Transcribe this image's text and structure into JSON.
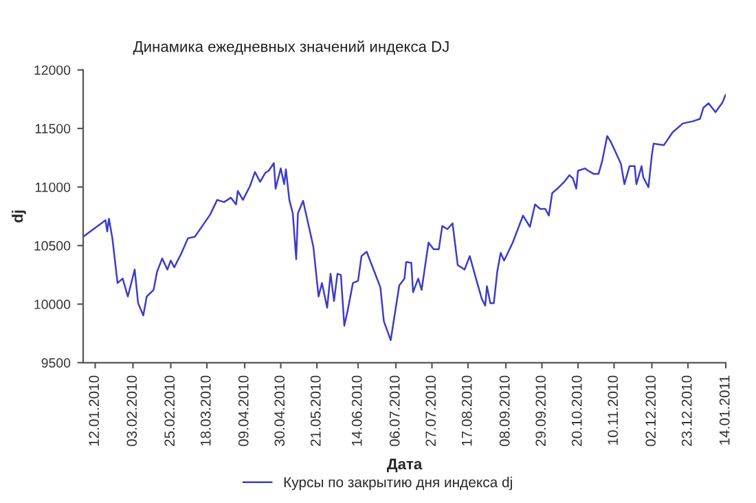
{
  "chart_data": {
    "type": "line",
    "title": "Динамика ежедневных значений индекса DJ",
    "xlabel": "Дата",
    "ylabel": "dj",
    "x": [
      "2010-01-05",
      "2010-01-11",
      "2010-01-18",
      "2010-01-19",
      "2010-01-20",
      "2010-01-22",
      "2010-01-25",
      "2010-01-28",
      "2010-01-31",
      "2010-02-04",
      "2010-02-06",
      "2010-02-09",
      "2010-02-11",
      "2010-02-15",
      "2010-02-17",
      "2010-02-20",
      "2010-02-23",
      "2010-02-25",
      "2010-02-27",
      "2010-03-03",
      "2010-03-07",
      "2010-03-11",
      "2010-03-15",
      "2010-03-20",
      "2010-03-24",
      "2010-03-28",
      "2010-04-01",
      "2010-04-04",
      "2010-04-05",
      "2010-04-08",
      "2010-04-12",
      "2010-04-15",
      "2010-04-18",
      "2010-04-21",
      "2010-04-23",
      "2010-04-26",
      "2010-04-27",
      "2010-04-30",
      "2010-05-02",
      "2010-05-03",
      "2010-05-05",
      "2010-05-07",
      "2010-05-09",
      "2010-05-10",
      "2010-05-13",
      "2010-05-17",
      "2010-05-19",
      "2010-05-22",
      "2010-05-24",
      "2010-05-27",
      "2010-05-29",
      "2010-05-31",
      "2010-06-02",
      "2010-06-04",
      "2010-06-06",
      "2010-06-08",
      "2010-06-11",
      "2010-06-14",
      "2010-06-16",
      "2010-06-19",
      "2010-06-23",
      "2010-06-27",
      "2010-06-29",
      "2010-07-03",
      "2010-07-08",
      "2010-07-11",
      "2010-07-12",
      "2010-07-15",
      "2010-07-16",
      "2010-07-19",
      "2010-07-21",
      "2010-07-25",
      "2010-07-28",
      "2010-07-31",
      "2010-08-02",
      "2010-08-05",
      "2010-08-08",
      "2010-08-11",
      "2010-08-15",
      "2010-08-18",
      "2010-08-22",
      "2010-08-25",
      "2010-08-27",
      "2010-08-28",
      "2010-08-30",
      "2010-09-01",
      "2010-09-03",
      "2010-09-05",
      "2010-09-07",
      "2010-09-12",
      "2010-09-14",
      "2010-09-18",
      "2010-09-22",
      "2010-09-25",
      "2010-09-28",
      "2010-10-01",
      "2010-10-03",
      "2010-10-05",
      "2010-10-08",
      "2010-10-12",
      "2010-10-15",
      "2010-10-17",
      "2010-10-19",
      "2010-10-20",
      "2010-10-24",
      "2010-10-26",
      "2010-10-29",
      "2010-11-01",
      "2010-11-03",
      "2010-11-06",
      "2010-11-08",
      "2010-11-11",
      "2010-11-14",
      "2010-11-16",
      "2010-11-19",
      "2010-11-22",
      "2010-11-23",
      "2010-11-26",
      "2010-11-27",
      "2010-11-30",
      "2010-12-02",
      "2010-12-03",
      "2010-12-09",
      "2010-12-14",
      "2010-12-20",
      "2010-12-26",
      "2010-12-30",
      "2011-01-01",
      "2011-01-04",
      "2011-01-08",
      "2011-01-09",
      "2011-01-12",
      "2011-01-14"
    ],
    "series": [
      {
        "name": "Курсы по закрытию дня индекса dj",
        "color": "#3c3cc8",
        "values": [
          10575,
          10640,
          10717,
          10621,
          10729,
          10563,
          10180,
          10218,
          10065,
          10295,
          10007,
          9903,
          10065,
          10122,
          10276,
          10390,
          10295,
          10372,
          10314,
          10429,
          10563,
          10575,
          10660,
          10767,
          10890,
          10871,
          10909,
          10851,
          10967,
          10890,
          11005,
          11128,
          11044,
          11121,
          11139,
          11205,
          10986,
          11159,
          11024,
          11151,
          10890,
          10775,
          10384,
          10775,
          10882,
          10621,
          10487,
          10065,
          10180,
          9969,
          10259,
          10026,
          10259,
          10249,
          9815,
          9949,
          10180,
          10199,
          10410,
          10448,
          10295,
          10142,
          9854,
          9692,
          10160,
          10218,
          10360,
          10352,
          10102,
          10218,
          10122,
          10525,
          10468,
          10468,
          10667,
          10640,
          10690,
          10333,
          10295,
          10410,
          10199,
          10045,
          9987,
          10153,
          10007,
          10007,
          10276,
          10437,
          10372,
          10525,
          10602,
          10756,
          10660,
          10851,
          10813,
          10813,
          10756,
          10948,
          10986,
          11044,
          11101,
          11075,
          10986,
          11139,
          11159,
          11139,
          11113,
          11113,
          11217,
          11435,
          11389,
          11294,
          11197,
          11024,
          11178,
          11178,
          11024,
          11178,
          11082,
          10998,
          11274,
          11370,
          11358,
          11466,
          11543,
          11562,
          11582,
          11677,
          11715,
          11639,
          11660,
          11720,
          11790
        ]
      }
    ],
    "xlim": [
      "2010-01-05",
      "2011-01-14"
    ],
    "xticks": [
      {
        "value": "2010-01-12",
        "label": "12.01.2010"
      },
      {
        "value": "2010-02-03",
        "label": "03.02.2010"
      },
      {
        "value": "2010-02-25",
        "label": "25.02.2010"
      },
      {
        "value": "2010-03-18",
        "label": "18.03.2010"
      },
      {
        "value": "2010-04-09",
        "label": "09.04.2010"
      },
      {
        "value": "2010-04-30",
        "label": "30.04.2010"
      },
      {
        "value": "2010-05-21",
        "label": "21.05.2010"
      },
      {
        "value": "2010-06-14",
        "label": "14.06.2010"
      },
      {
        "value": "2010-07-06",
        "label": "06.07.2010"
      },
      {
        "value": "2010-07-27",
        "label": "27.07.2010"
      },
      {
        "value": "2010-08-17",
        "label": "17.08.2010"
      },
      {
        "value": "2010-09-08",
        "label": "08.09.2010"
      },
      {
        "value": "2010-09-29",
        "label": "29.09.2010"
      },
      {
        "value": "2010-10-20",
        "label": "20.10.2010"
      },
      {
        "value": "2010-11-10",
        "label": "10.11.2010"
      },
      {
        "value": "2010-12-02",
        "label": "02.12.2010"
      },
      {
        "value": "2010-12-23",
        "label": "23.12.2010"
      },
      {
        "value": "2011-01-14",
        "label": "14.01.2011"
      }
    ],
    "ylim": [
      9500,
      12000
    ],
    "yticks": [
      9500,
      10000,
      10500,
      11000,
      11500,
      12000
    ],
    "grid": false,
    "legend": "bottom",
    "marker": "none",
    "line_style": "solid"
  }
}
